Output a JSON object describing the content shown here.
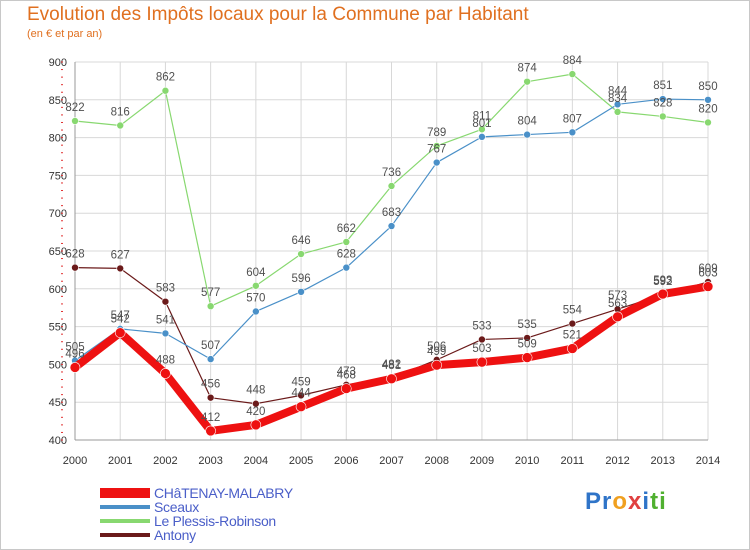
{
  "title": "Evolution des Impôts locaux pour la Commune par Habitant",
  "subtitle": "(en € et par an)",
  "logo": {
    "text": "Proxiti",
    "letters": [
      {
        "ch": "P",
        "color": "#2f74c8"
      },
      {
        "ch": "r",
        "color": "#2f74c8"
      },
      {
        "ch": "o",
        "color": "#f0a020"
      },
      {
        "ch": "x",
        "color": "#e04040"
      },
      {
        "ch": "i",
        "color": "#2f74c8"
      },
      {
        "ch": "t",
        "color": "#50b030"
      },
      {
        "ch": "i",
        "color": "#50b030"
      }
    ]
  },
  "chart_data": {
    "type": "line",
    "title": "Evolution des Impôts locaux pour la Commune par Habitant",
    "subtitle": "(en € et par an)",
    "x": [
      "2000",
      "2001",
      "2002",
      "2003",
      "2004",
      "2005",
      "2006",
      "2007",
      "2008",
      "2009",
      "2010",
      "2011",
      "2012",
      "2013",
      "2014"
    ],
    "ylim": [
      400,
      900
    ],
    "yticks": [
      400,
      450,
      500,
      550,
      600,
      650,
      700,
      750,
      800,
      850,
      900
    ],
    "grid": true,
    "legend_position": "bottom-left",
    "series": [
      {
        "name": "Antony",
        "color": "#6b1a1a",
        "width": 1.2,
        "marker": 3.5,
        "values": [
          628,
          627,
          583,
          456,
          448,
          459,
          473,
          482,
          506,
          533,
          535,
          554,
          573,
          592,
          609
        ]
      },
      {
        "name": "Le Plessis-Robinson",
        "color": "#88d870",
        "width": 1.2,
        "marker": 3.5,
        "values": [
          822,
          816,
          862,
          577,
          604,
          646,
          662,
          736,
          789,
          811,
          874,
          884,
          834,
          828,
          820
        ]
      },
      {
        "name": "Sceaux",
        "color": "#4a90c8",
        "width": 1.2,
        "marker": 3.5,
        "values": [
          505,
          547,
          541,
          507,
          570,
          596,
          628,
          683,
          767,
          801,
          804,
          807,
          844,
          851,
          850
        ]
      },
      {
        "name": "CHâTENAY-MALABRY",
        "color": "#ee1111",
        "width": 8,
        "marker": 5,
        "values": [
          496,
          542,
          488,
          412,
          420,
          444,
          468,
          481,
          499,
          503,
          509,
          521,
          563,
          593,
          603
        ]
      }
    ]
  },
  "legend_order": [
    3,
    2,
    1,
    0
  ]
}
